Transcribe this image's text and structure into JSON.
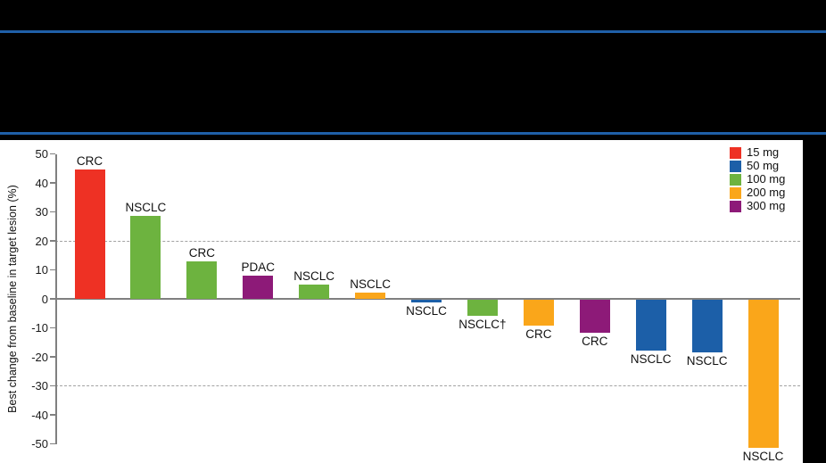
{
  "banner": {
    "divider_color": "#1f5fa8"
  },
  "chart_data": {
    "type": "bar",
    "variant": "waterfall",
    "title": "",
    "ylabel": "Best change from baseline in target lesion (%)",
    "ylim": [
      -50,
      50
    ],
    "y_ticks": [
      50,
      40,
      30,
      20,
      10,
      0,
      -10,
      -20,
      -30,
      -40,
      -50
    ],
    "dashed_gridlines": [
      20,
      -30
    ],
    "grid": "dashed-reference-lines-only",
    "legend_position": "top-right",
    "categories": [
      "CRC",
      "NSCLC",
      "CRC",
      "PDAC",
      "NSCLC",
      "NSCLC",
      "NSCLC",
      "NSCLC†",
      "CRC",
      "CRC",
      "NSCLC",
      "NSCLC",
      "NSCLC"
    ],
    "values": [
      44.5,
      28.5,
      13,
      8,
      5,
      2.2,
      -1,
      -5.5,
      -9,
      -11.5,
      -17.5,
      -18,
      -51
    ],
    "doses": [
      "15 mg",
      "100 mg",
      "100 mg",
      "300 mg",
      "100 mg",
      "200 mg",
      "50 mg",
      "100 mg",
      "200 mg",
      "300 mg",
      "50 mg",
      "50 mg",
      "200 mg"
    ],
    "dose_colors": {
      "15 mg": "#ee3124",
      "50 mg": "#1c5fa8",
      "100 mg": "#6db33f",
      "200 mg": "#faa61a",
      "300 mg": "#8d1a78"
    },
    "legend_entries": [
      "15 mg",
      "50 mg",
      "100 mg",
      "200 mg",
      "300 mg"
    ],
    "axis_color": "#808080",
    "gridline_color": "#a3a3a3",
    "zero_line_color": "#808080"
  }
}
